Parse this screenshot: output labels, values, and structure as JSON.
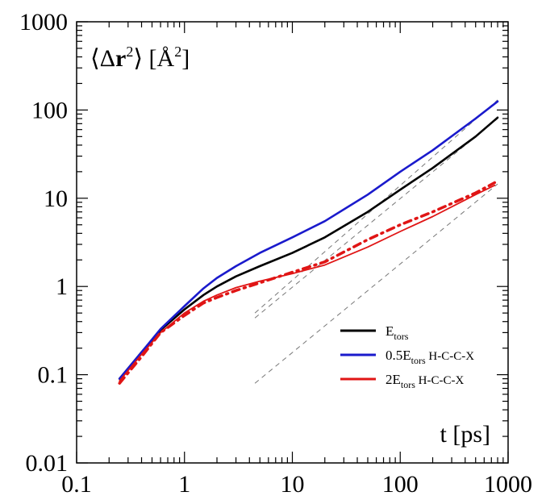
{
  "chart_data": {
    "type": "line",
    "x_scale": "log",
    "y_scale": "log",
    "xlim": [
      0.1,
      1000
    ],
    "ylim": [
      0.01,
      1000
    ],
    "x_ticks": [
      "0.1",
      "1",
      "10",
      "100",
      "1000"
    ],
    "y_ticks": [
      "0.01",
      "0.1",
      "1",
      "10",
      "100",
      "1000"
    ],
    "xlabel": "t [ps]",
    "ylabel": {
      "open": "⟨Δ",
      "bold": "r",
      "sup": "2",
      "close": "⟩ [Å",
      "sup2": "2",
      "end": "]"
    },
    "grid": false,
    "legend_position": "right-center",
    "legend": [
      {
        "main": "E",
        "sub": "tors",
        "suffix": "",
        "color": "#000000"
      },
      {
        "main": "0.5E",
        "sub": "tors",
        "suffix": "H-C-C-X",
        "color": "#1a1acc"
      },
      {
        "main": "2E",
        "sub": "tors",
        "suffix": "H-C-C-X",
        "color": "#e01515"
      }
    ],
    "series": [
      {
        "legend_index": 0,
        "color": "#000000",
        "style": "solid",
        "x": [
          0.25,
          0.4,
          0.6,
          1,
          1.5,
          2,
          3,
          5,
          10,
          20,
          50,
          100,
          200,
          500,
          800
        ],
        "y": [
          0.09,
          0.18,
          0.32,
          0.55,
          0.8,
          1.0,
          1.3,
          1.7,
          2.4,
          3.6,
          7.0,
          12.5,
          22,
          50,
          82
        ]
      },
      {
        "legend_index": 1,
        "color": "#1a1acc",
        "style": "solid",
        "x": [
          0.25,
          0.4,
          0.6,
          1,
          1.5,
          2,
          3,
          5,
          10,
          20,
          50,
          100,
          200,
          500,
          800
        ],
        "y": [
          0.09,
          0.18,
          0.33,
          0.6,
          0.95,
          1.25,
          1.7,
          2.4,
          3.6,
          5.5,
          11,
          20,
          35,
          80,
          125
        ]
      },
      {
        "legend_index": 2,
        "color": "#e01515",
        "style": "solid",
        "x": [
          0.25,
          0.4,
          0.6,
          1,
          1.5,
          2,
          3,
          5,
          10,
          20,
          50,
          100,
          200,
          500,
          750
        ],
        "y": [
          0.085,
          0.17,
          0.3,
          0.5,
          0.68,
          0.8,
          0.97,
          1.15,
          1.4,
          1.75,
          2.8,
          4.2,
          6.2,
          11,
          14
        ]
      },
      {
        "legend_index": 2,
        "color": "#e01515",
        "style": "dashdot",
        "x": [
          0.25,
          0.4,
          0.6,
          1,
          1.5,
          2,
          3,
          5,
          10,
          20,
          50,
          100,
          200,
          500,
          750
        ],
        "y": [
          0.08,
          0.16,
          0.3,
          0.47,
          0.65,
          0.75,
          0.9,
          1.1,
          1.45,
          1.9,
          3.4,
          5.0,
          7.0,
          11.5,
          15
        ]
      }
    ],
    "reference_lines": [
      {
        "x": [
          4.5,
          800
        ],
        "y": [
          0.5,
          130
        ]
      },
      {
        "x": [
          4.5,
          800
        ],
        "y": [
          0.44,
          80
        ]
      },
      {
        "x": [
          4.5,
          800
        ],
        "y": [
          0.08,
          14.5
        ]
      }
    ]
  }
}
